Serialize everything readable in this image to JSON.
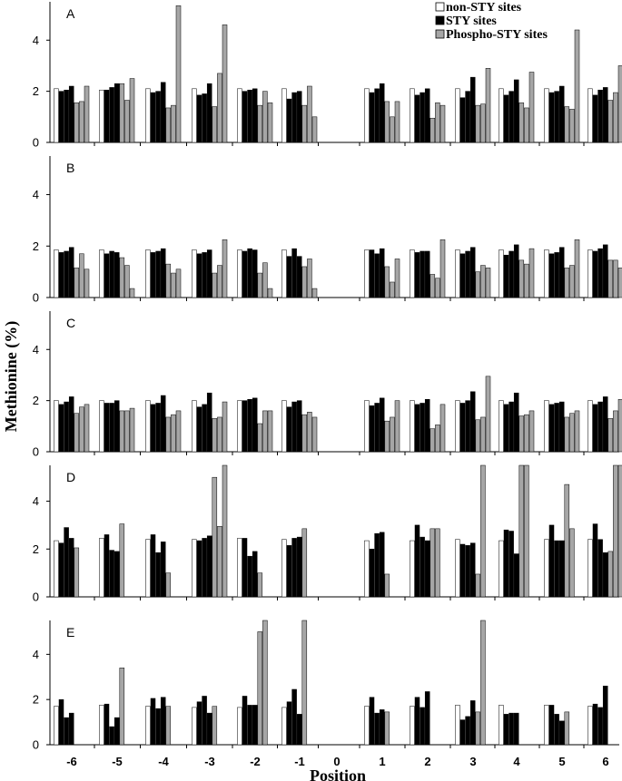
{
  "chart_data": {
    "type": "bar",
    "ylabel": "Methionine (%)",
    "xlabel": "Position",
    "ylim": [
      0,
      5.5
    ],
    "yticks": [
      0,
      2,
      4
    ],
    "positions": [
      "-6",
      "-5",
      "-4",
      "-3",
      "-2",
      "-1",
      "0",
      "1",
      "2",
      "3",
      "4",
      "5",
      "6"
    ],
    "legend": {
      "placement": "top-right",
      "entries": [
        {
          "label": "non-STY sites",
          "color": "#ffffff"
        },
        {
          "label": "STY sites",
          "color": "#000000"
        },
        {
          "label": "Phospho-STY sites",
          "color": "#a6a6a6"
        }
      ]
    },
    "bar_pattern": [
      "white",
      "black",
      "black",
      "black",
      "gray",
      "gray",
      "gray"
    ],
    "colors": {
      "white": "#ffffff",
      "black": "#000000",
      "gray": "#a6a6a6"
    },
    "panels": [
      {
        "label": "A",
        "values": [
          [
            2.1,
            2.0,
            2.05,
            2.2,
            1.55,
            1.6,
            2.2
          ],
          [
            2.05,
            2.05,
            2.15,
            2.3,
            2.3,
            1.65,
            2.5
          ],
          [
            2.1,
            1.95,
            2.0,
            2.35,
            1.35,
            1.45,
            5.35
          ],
          [
            2.1,
            1.85,
            1.9,
            2.3,
            1.4,
            2.7,
            4.6
          ],
          [
            2.1,
            2.0,
            2.05,
            2.1,
            1.45,
            2.0,
            1.55
          ],
          [
            2.1,
            1.7,
            1.95,
            2.0,
            1.45,
            2.2,
            1.0
          ],
          null,
          [
            2.1,
            1.95,
            2.1,
            2.3,
            1.6,
            1.0,
            1.6
          ],
          [
            2.1,
            1.85,
            1.95,
            2.1,
            0.95,
            1.55,
            1.45
          ],
          [
            2.1,
            1.75,
            2.0,
            2.55,
            1.45,
            1.5,
            2.9
          ],
          [
            2.1,
            1.85,
            2.0,
            2.45,
            1.55,
            1.35,
            2.75
          ],
          [
            2.1,
            1.95,
            2.0,
            2.2,
            1.4,
            1.3,
            4.4
          ],
          [
            2.1,
            1.85,
            2.05,
            2.15,
            1.65,
            1.95,
            3.0
          ]
        ]
      },
      {
        "label": "B",
        "values": [
          [
            1.85,
            1.75,
            1.8,
            1.95,
            1.15,
            1.7,
            1.1
          ],
          [
            1.85,
            1.7,
            1.8,
            1.75,
            1.55,
            1.25,
            0.35
          ],
          [
            1.85,
            1.75,
            1.8,
            1.9,
            1.3,
            0.95,
            1.1
          ],
          [
            1.85,
            1.7,
            1.75,
            1.85,
            0.95,
            1.25,
            2.25
          ],
          [
            1.85,
            1.8,
            1.9,
            1.85,
            0.95,
            1.35,
            0.35
          ],
          [
            1.85,
            1.6,
            1.9,
            1.6,
            1.2,
            1.5,
            0.35
          ],
          null,
          [
            1.85,
            1.85,
            1.7,
            1.9,
            1.2,
            0.6,
            1.5
          ],
          [
            1.85,
            1.75,
            1.8,
            1.8,
            0.9,
            0.75,
            2.25
          ],
          [
            1.85,
            1.7,
            1.8,
            1.95,
            1.0,
            1.25,
            1.15
          ],
          [
            1.85,
            1.65,
            1.8,
            2.05,
            1.45,
            1.3,
            1.9
          ],
          [
            1.85,
            1.7,
            1.75,
            1.95,
            1.15,
            1.25,
            2.25
          ],
          [
            1.85,
            1.8,
            1.9,
            2.05,
            1.45,
            1.45,
            1.15
          ]
        ]
      },
      {
        "label": "C",
        "values": [
          [
            2.0,
            1.85,
            1.95,
            2.15,
            1.5,
            1.75,
            1.85
          ],
          [
            2.0,
            1.9,
            1.9,
            2.0,
            1.6,
            1.6,
            1.7
          ],
          [
            2.0,
            1.85,
            1.9,
            2.2,
            1.35,
            1.45,
            1.6
          ],
          [
            2.0,
            1.75,
            1.85,
            2.3,
            1.3,
            1.35,
            1.95
          ],
          [
            2.0,
            2.0,
            2.05,
            2.1,
            1.1,
            1.6,
            1.6
          ],
          [
            2.0,
            1.75,
            1.95,
            2.0,
            1.45,
            1.55,
            1.35
          ],
          null,
          [
            2.0,
            1.8,
            1.9,
            2.1,
            1.2,
            1.35,
            2.0
          ],
          [
            2.0,
            1.85,
            1.9,
            2.05,
            0.9,
            1.05,
            1.85
          ],
          [
            2.0,
            1.9,
            2.0,
            2.35,
            1.25,
            1.35,
            2.95
          ],
          [
            2.0,
            1.85,
            1.95,
            2.3,
            1.4,
            1.45,
            1.6
          ],
          [
            2.0,
            1.85,
            1.9,
            1.95,
            1.35,
            1.5,
            1.6
          ],
          [
            2.0,
            1.85,
            1.95,
            2.15,
            1.3,
            1.6,
            2.05
          ]
        ]
      },
      {
        "label": "D",
        "values": [
          [
            2.35,
            2.25,
            2.9,
            2.45,
            2.05,
            null,
            null
          ],
          [
            2.45,
            2.6,
            1.95,
            1.9,
            3.05,
            null,
            null
          ],
          [
            2.4,
            2.6,
            1.85,
            2.3,
            1.0,
            null,
            null
          ],
          [
            2.4,
            2.35,
            2.45,
            2.55,
            5.0,
            2.95,
            5.5
          ],
          [
            2.45,
            2.45,
            1.7,
            1.9,
            1.0,
            null,
            null
          ],
          [
            2.4,
            2.15,
            2.45,
            2.5,
            2.85,
            null,
            null
          ],
          null,
          [
            2.35,
            2.0,
            2.65,
            2.7,
            0.95,
            null,
            null
          ],
          [
            2.35,
            3.0,
            2.5,
            2.35,
            2.85,
            2.85,
            null
          ],
          [
            2.4,
            2.2,
            2.15,
            2.25,
            0.95,
            5.5,
            null
          ],
          [
            2.35,
            2.8,
            2.75,
            1.8,
            5.5,
            5.5,
            null
          ],
          [
            2.4,
            3.0,
            2.35,
            2.35,
            4.7,
            2.85,
            null
          ],
          [
            2.4,
            3.05,
            2.4,
            1.85,
            1.9,
            5.5,
            5.5
          ]
        ]
      },
      {
        "label": "E",
        "values": [
          [
            1.7,
            2.0,
            1.2,
            1.4,
            null,
            null,
            null
          ],
          [
            1.75,
            1.8,
            0.8,
            1.2,
            3.4,
            null,
            null
          ],
          [
            1.7,
            2.05,
            1.6,
            2.1,
            1.7,
            null,
            null
          ],
          [
            1.65,
            1.9,
            2.15,
            1.4,
            1.7,
            null,
            null
          ],
          [
            1.65,
            2.15,
            1.75,
            1.75,
            5.0,
            5.5,
            null
          ],
          [
            1.65,
            1.9,
            2.45,
            1.35,
            5.5,
            null,
            null
          ],
          null,
          [
            1.7,
            2.1,
            1.4,
            1.55,
            1.45,
            null,
            null
          ],
          [
            1.7,
            2.1,
            1.65,
            2.35,
            null,
            null,
            null
          ],
          [
            1.75,
            1.1,
            1.25,
            1.95,
            1.45,
            5.5,
            null
          ],
          [
            1.75,
            1.35,
            1.4,
            1.4,
            null,
            null,
            null
          ],
          [
            1.75,
            1.75,
            1.35,
            1.05,
            1.45,
            null,
            null
          ],
          [
            1.7,
            1.8,
            1.65,
            2.6,
            null,
            null,
            null
          ]
        ]
      }
    ]
  }
}
